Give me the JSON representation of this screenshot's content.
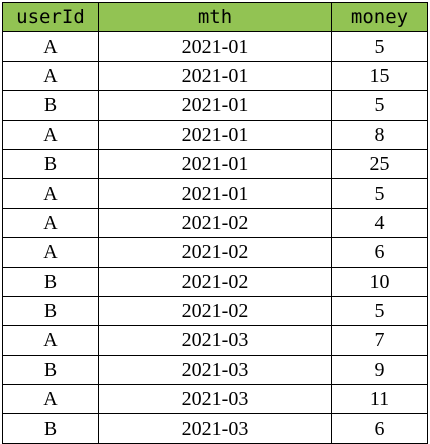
{
  "colors": {
    "header_bg": "#92c353",
    "border": "#000000"
  },
  "table": {
    "headers": [
      "userId",
      "mth",
      "money"
    ],
    "rows": [
      [
        "A",
        "2021-01",
        "5"
      ],
      [
        "A",
        "2021-01",
        "15"
      ],
      [
        "B",
        "2021-01",
        "5"
      ],
      [
        "A",
        "2021-01",
        "8"
      ],
      [
        "B",
        "2021-01",
        "25"
      ],
      [
        "A",
        "2021-01",
        "5"
      ],
      [
        "A",
        "2021-02",
        "4"
      ],
      [
        "A",
        "2021-02",
        "6"
      ],
      [
        "B",
        "2021-02",
        "10"
      ],
      [
        "B",
        "2021-02",
        "5"
      ],
      [
        "A",
        "2021-03",
        "7"
      ],
      [
        "B",
        "2021-03",
        "9"
      ],
      [
        "A",
        "2021-03",
        "11"
      ],
      [
        "B",
        "2021-03",
        "6"
      ]
    ]
  }
}
